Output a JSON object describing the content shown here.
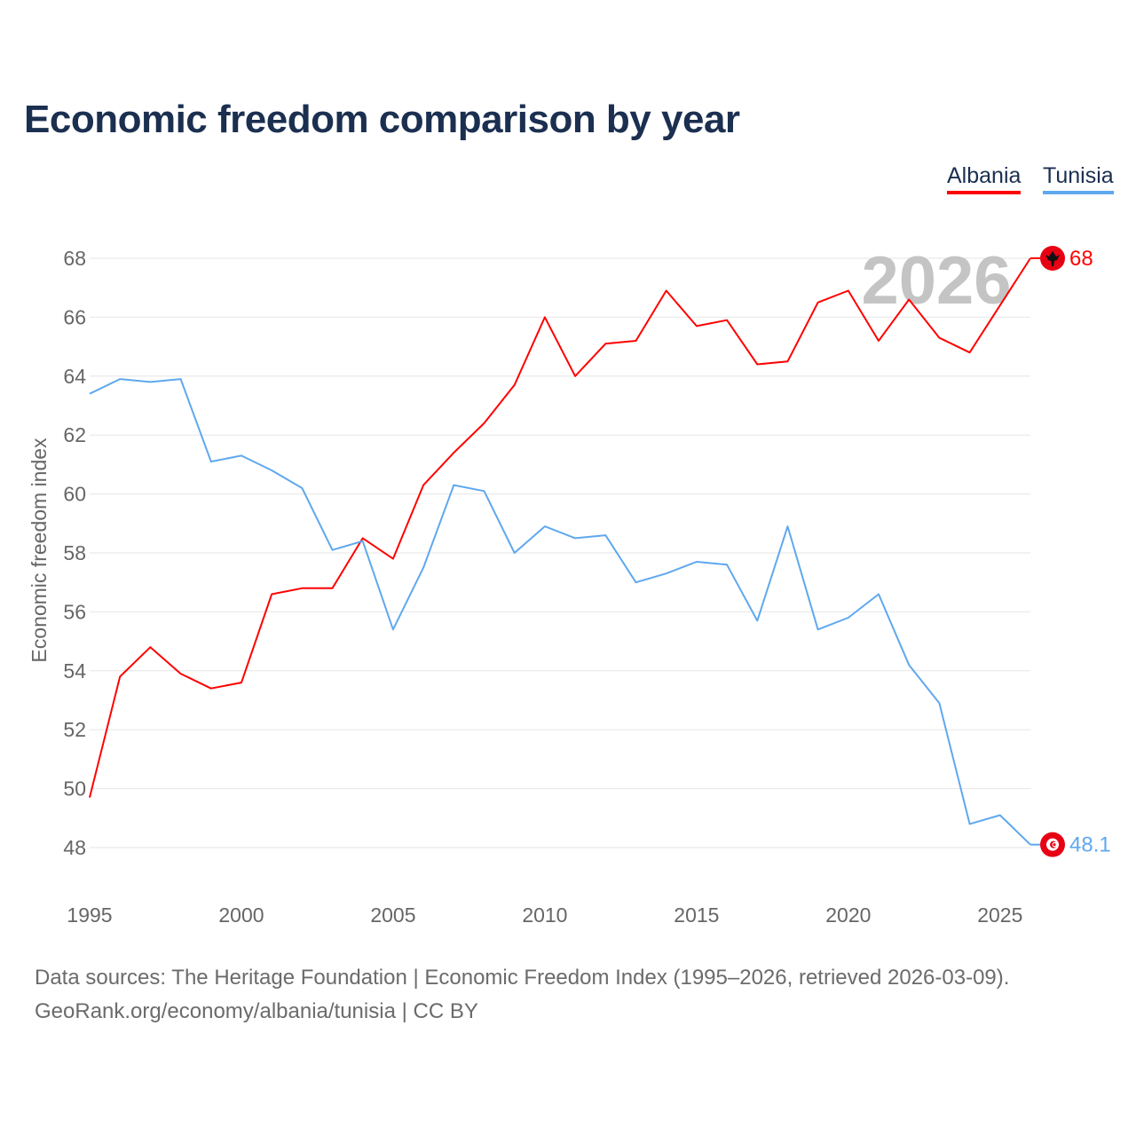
{
  "title": "Economic freedom comparison by year",
  "legend": [
    {
      "label": "Albania",
      "color": "#ff0000"
    },
    {
      "label": "Tunisia",
      "color": "#5fa8ee"
    }
  ],
  "year_watermark": "2026",
  "footer": {
    "line1": "Data sources: The Heritage Foundation | Economic Freedom Index (1995–2026, retrieved 2026-03-09).",
    "line2": "GeoRank.org/economy/albania/tunisia | CC BY"
  },
  "chart_data": {
    "type": "line",
    "title": "Economic freedom comparison by year",
    "xlabel": "",
    "ylabel": "Economic freedom index",
    "xlim": [
      1995,
      2026
    ],
    "ylim": [
      48,
      68
    ],
    "x_ticks": [
      1995,
      2000,
      2005,
      2010,
      2015,
      2020,
      2025
    ],
    "y_ticks": [
      48,
      50,
      52,
      54,
      56,
      58,
      60,
      62,
      64,
      66,
      68
    ],
    "grid": true,
    "legend_position": "top-right",
    "x": [
      1995,
      1996,
      1997,
      1998,
      1999,
      2000,
      2001,
      2002,
      2003,
      2004,
      2005,
      2006,
      2007,
      2008,
      2009,
      2010,
      2011,
      2012,
      2013,
      2014,
      2015,
      2016,
      2017,
      2018,
      2019,
      2020,
      2021,
      2022,
      2023,
      2024,
      2025,
      2026
    ],
    "series": [
      {
        "name": "Albania",
        "color": "#ff0000",
        "end_label": "68",
        "values": [
          49.7,
          53.8,
          54.8,
          53.9,
          53.4,
          53.6,
          56.6,
          56.8,
          56.8,
          58.5,
          57.8,
          60.3,
          61.4,
          62.4,
          63.7,
          66.0,
          64.0,
          65.1,
          65.2,
          66.9,
          65.7,
          65.9,
          64.4,
          64.5,
          66.5,
          66.9,
          65.2,
          66.6,
          65.3,
          64.8,
          66.4,
          68.0
        ]
      },
      {
        "name": "Tunisia",
        "color": "#5fa8ee",
        "end_label": "48.1",
        "values": [
          63.4,
          63.9,
          63.8,
          63.9,
          61.1,
          61.3,
          60.8,
          60.2,
          58.1,
          58.4,
          55.4,
          57.5,
          60.3,
          60.1,
          58.0,
          58.9,
          58.5,
          58.6,
          57.0,
          57.3,
          57.7,
          57.6,
          55.7,
          58.9,
          55.4,
          55.8,
          56.6,
          54.2,
          52.9,
          48.8,
          49.1,
          48.1
        ]
      }
    ]
  }
}
